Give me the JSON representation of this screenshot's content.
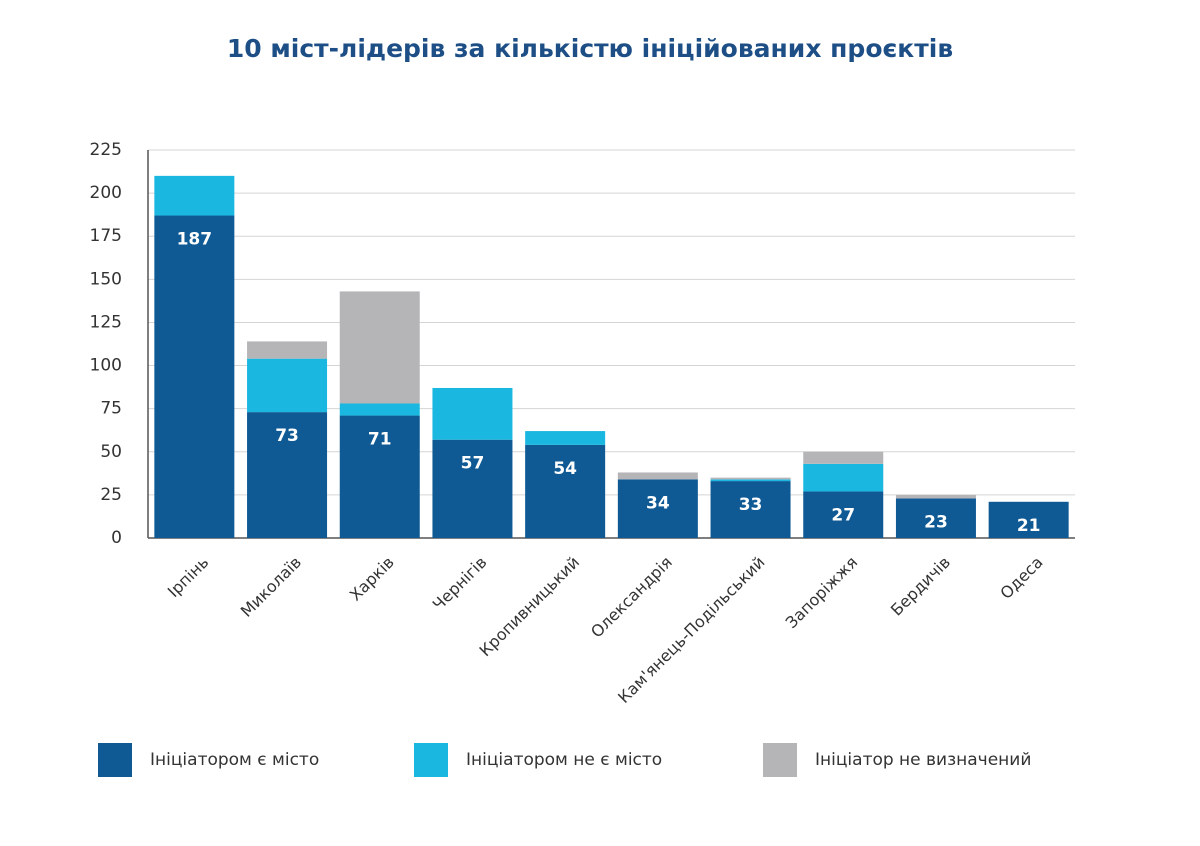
{
  "chart_data": {
    "type": "stacked_bar",
    "title": "10 міст-лідерів за кількістю ініційованих проєктів",
    "categories": [
      "Ірпінь",
      "Миколаїв",
      "Харків",
      "Чернігів",
      "Кропивницький",
      "Олександрія",
      "Кам'янець-Подільський",
      "Запоріжжя",
      "Бердичів",
      "Одеса"
    ],
    "series": [
      {
        "name": "Ініціатором є місто",
        "color": "#0f5a94",
        "values": [
          187,
          73,
          71,
          57,
          54,
          34,
          33,
          27,
          23,
          21
        ]
      },
      {
        "name": "Ініціатором не є місто",
        "color": "#1ab7e0",
        "values": [
          23,
          31,
          7,
          30,
          8,
          0,
          1,
          16,
          0,
          0
        ]
      },
      {
        "name": "Ініціатор не визначений",
        "color": "#b5b5b8",
        "values": [
          0,
          10,
          65,
          0,
          0,
          4,
          1,
          7,
          2,
          0
        ]
      }
    ],
    "ylim": [
      0,
      225
    ],
    "yticks": [
      0,
      25,
      50,
      75,
      100,
      125,
      150,
      175,
      200,
      225
    ],
    "grid": true
  }
}
